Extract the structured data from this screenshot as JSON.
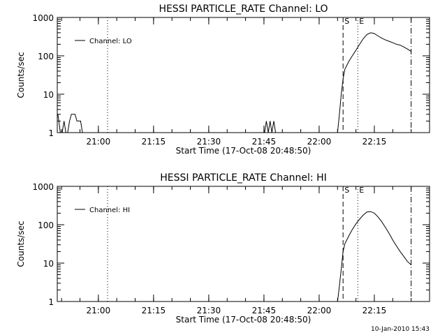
{
  "footer_text": "10-Jan-2010 15:43",
  "chart_data": [
    {
      "type": "line",
      "title": "HESSI PARTICLE_RATE Channel: LO",
      "xlabel": "Start Time (17-Oct-08 20:48:50)",
      "ylabel": "Counts/sec",
      "yscale": "log",
      "ylim": [
        1,
        1000
      ],
      "xlim": [
        "20:48:50",
        "22:30:00"
      ],
      "x_ticks": [
        "21:00",
        "21:15",
        "21:30",
        "21:45",
        "22:00",
        "22:15"
      ],
      "y_ticks": [
        "1",
        "10",
        "100",
        "1000"
      ],
      "legend": {
        "position": "top-left",
        "entries": [
          "Channel: LO"
        ]
      },
      "markers": [
        {
          "label": "",
          "time": "21:02:30",
          "style": "dotted"
        },
        {
          "label": "S",
          "time": "22:06:30",
          "style": "dashed"
        },
        {
          "label": "E",
          "time": "22:10:30",
          "style": "dotted"
        },
        {
          "label": "",
          "time": "22:25:00",
          "style": "dashdot"
        }
      ],
      "series": [
        {
          "name": "Channel: LO",
          "x": [
            "20:49:00",
            "20:49:40",
            "20:50:10",
            "20:50:40",
            "20:51:10",
            "20:51:40",
            "20:52:10",
            "20:52:40",
            "20:53:10",
            "20:53:40",
            "20:54:10",
            "20:54:40",
            "20:55:10",
            "20:55:40",
            "20:56:10",
            "20:56:40",
            "20:57:10",
            "20:57:40",
            "20:58:40",
            "20:59:40",
            "21:45:10",
            "21:45:40",
            "21:46:10",
            "21:46:40",
            "21:47:10",
            "21:47:40",
            "21:48:10",
            "21:48:40",
            "22:05:00",
            "22:05:30",
            "22:06:00",
            "22:06:30",
            "22:07:00",
            "22:08:00",
            "22:09:00",
            "22:10:00",
            "22:11:00",
            "22:12:00",
            "22:13:00",
            "22:14:00",
            "22:15:00",
            "22:16:00",
            "22:17:00",
            "22:18:00",
            "22:19:00",
            "22:20:00",
            "22:21:00",
            "22:22:00",
            "22:23:00",
            "22:24:00",
            "22:25:00"
          ],
          "y": [
            3,
            1,
            1,
            2,
            1,
            1,
            2,
            3,
            3,
            3,
            2,
            2,
            2,
            1,
            1,
            1,
            1,
            1,
            1,
            1,
            1,
            2,
            1,
            2,
            1,
            2,
            1,
            1,
            1,
            3,
            10,
            25,
            45,
            70,
            100,
            140,
            200,
            280,
            360,
            400,
            380,
            330,
            290,
            260,
            240,
            220,
            200,
            190,
            170,
            150,
            130
          ]
        }
      ]
    },
    {
      "type": "line",
      "title": "HESSI PARTICLE_RATE Channel: HI",
      "xlabel": "Start Time (17-Oct-08 20:48:50)",
      "ylabel": "Counts/sec",
      "yscale": "log",
      "ylim": [
        1,
        1000
      ],
      "xlim": [
        "20:48:50",
        "22:30:00"
      ],
      "x_ticks": [
        "21:00",
        "21:15",
        "21:30",
        "21:45",
        "22:00",
        "22:15"
      ],
      "y_ticks": [
        "1",
        "10",
        "100",
        "1000"
      ],
      "legend": {
        "position": "top-left",
        "entries": [
          "Channel: HI"
        ]
      },
      "markers": [
        {
          "label": "",
          "time": "21:02:30",
          "style": "dotted"
        },
        {
          "label": "S",
          "time": "22:06:30",
          "style": "dashed"
        },
        {
          "label": "E",
          "time": "22:10:30",
          "style": "dotted"
        },
        {
          "label": "",
          "time": "22:25:00",
          "style": "dashdot"
        }
      ],
      "series": [
        {
          "name": "Channel: HI",
          "x": [
            "22:05:00",
            "22:05:30",
            "22:06:00",
            "22:06:30",
            "22:07:00",
            "22:08:00",
            "22:09:00",
            "22:10:00",
            "22:11:00",
            "22:12:00",
            "22:13:00",
            "22:14:00",
            "22:15:00",
            "22:16:00",
            "22:17:00",
            "22:18:00",
            "22:19:00",
            "22:20:00",
            "22:21:00",
            "22:22:00",
            "22:23:00",
            "22:24:00",
            "22:25:00"
          ],
          "y": [
            1,
            2.5,
            7,
            20,
            32,
            50,
            75,
            105,
            140,
            180,
            215,
            220,
            200,
            160,
            120,
            85,
            60,
            40,
            28,
            20,
            15,
            11,
            9
          ]
        }
      ]
    }
  ]
}
